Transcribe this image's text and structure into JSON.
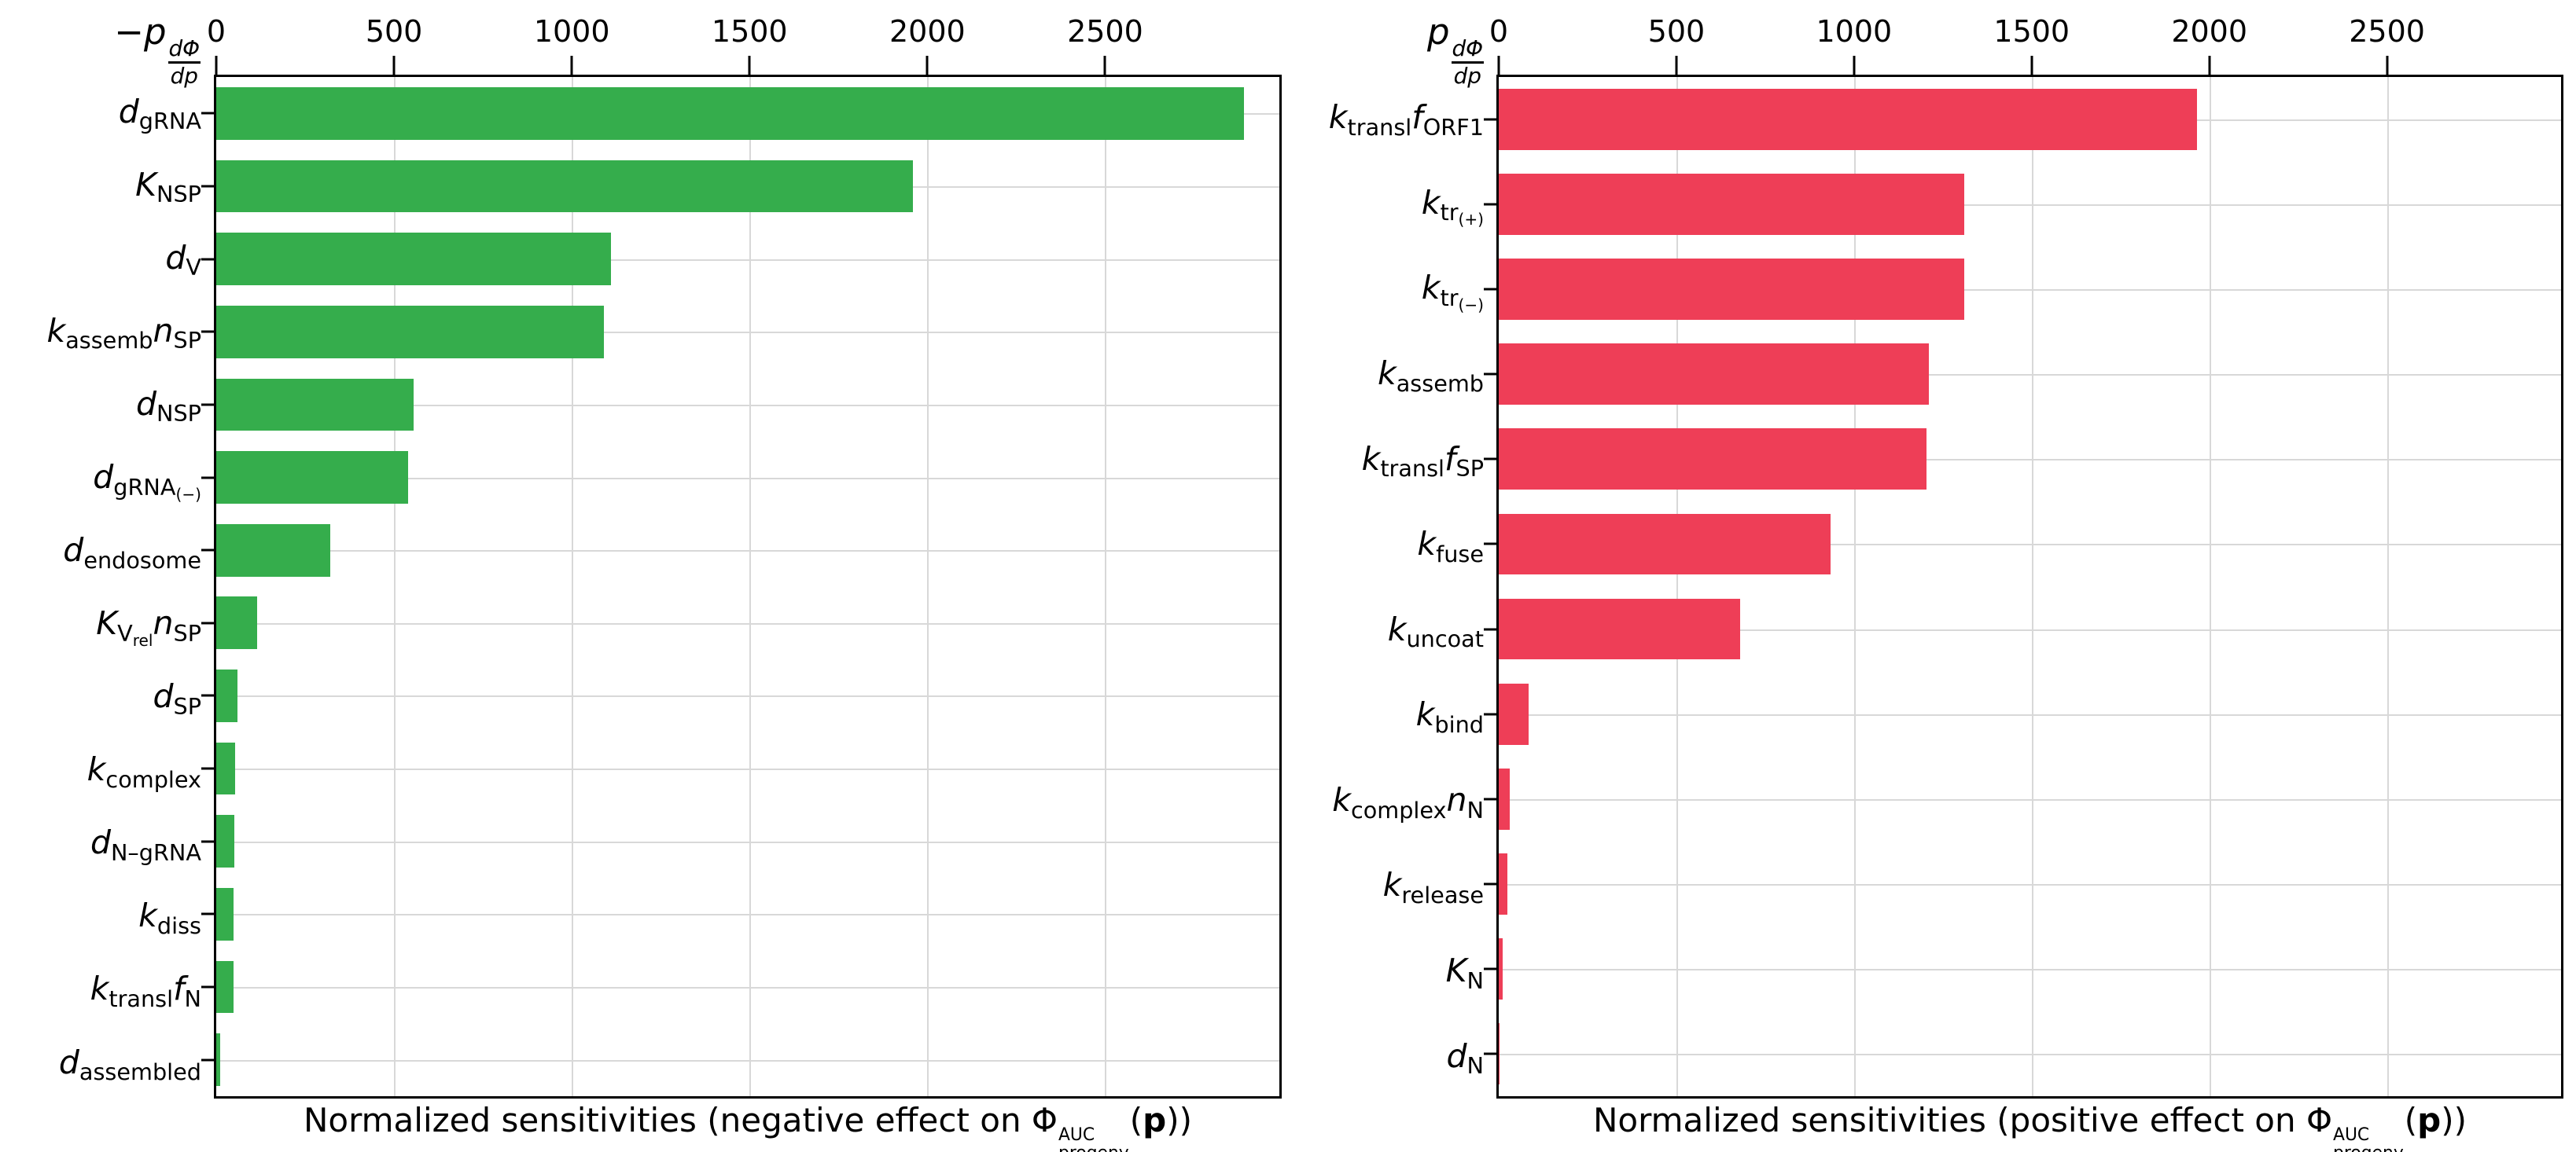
{
  "figure": {
    "background": "#ffffff",
    "grid_color": "#d8d8d8",
    "spine_color": "#000000"
  },
  "panels": [
    {
      "id": "negative",
      "axis_title": {
        "prefix": "−p",
        "frac_num": "dΦ",
        "frac_den": "dp"
      },
      "caption": {
        "text": "Normalized sensitivities (negative effect on ",
        "phi": "Φ",
        "sup": "AUC",
        "sub": "progeny",
        "open": "(",
        "p": "p",
        "close": "))"
      }
    },
    {
      "id": "positive",
      "axis_title": {
        "prefix": "p",
        "frac_num": "dΦ",
        "frac_den": "dp"
      },
      "caption": {
        "text": "Normalized sensitivities (positive effect on ",
        "phi": "Φ",
        "sup": "AUC",
        "sub": "progeny",
        "open": "(",
        "p": "p",
        "close": "))"
      }
    }
  ],
  "chart_data": [
    {
      "type": "bar",
      "orientation": "horizontal",
      "panel": "negative",
      "title": "-p dΦ/dp",
      "xlabel": "Normalized sensitivities (negative effect on Φ_progeny^AUC(p))",
      "categories": [
        "d_{gRNA}",
        "K_{NSP}",
        "d_{V}",
        "k_{assemb}n_{SP}",
        "d_{NSP}",
        "d_{gRNA_{(−)}}",
        "d_{endosome}",
        "K_{V_{rel}}n_{SP}",
        "d_{SP}",
        "k_{complex}",
        "d_{N–gRNA}",
        "k_{diss}",
        "k_{transl}f_{N}",
        "d_{assembled}"
      ],
      "values": [
        2890,
        1960,
        1110,
        1090,
        555,
        540,
        320,
        115,
        60,
        52,
        50,
        49,
        48,
        12
      ],
      "xticks": [
        0,
        500,
        1000,
        1500,
        2000,
        2500
      ],
      "xlim": [
        0,
        2990
      ],
      "bar_color": "#35ad4c",
      "grid": true,
      "x_axis_position": "top",
      "legend": "none"
    },
    {
      "type": "bar",
      "orientation": "horizontal",
      "panel": "positive",
      "title": "p dΦ/dp",
      "xlabel": "Normalized sensitivities (positive effect on Φ_progeny^AUC(p))",
      "categories": [
        "k_{transl}f_{ORF1}",
        "k_{tr_{(+)}}",
        "k_{tr_{(−)}}",
        "k_{assemb}",
        "k_{transl}f_{SP}",
        "k_{fuse}",
        "k_{uncoat}",
        "k_{bind}",
        "k_{complex}n_{N}",
        "k_{release}",
        "K_{N}",
        "d_{N}"
      ],
      "values": [
        1965,
        1310,
        1310,
        1210,
        1205,
        935,
        680,
        85,
        30,
        25,
        12,
        3
      ],
      "xticks": [
        0,
        500,
        1000,
        1500,
        2000,
        2500
      ],
      "xlim": [
        0,
        2990
      ],
      "bar_color": "#ee3e57",
      "grid": true,
      "x_axis_position": "top",
      "legend": "none"
    }
  ]
}
